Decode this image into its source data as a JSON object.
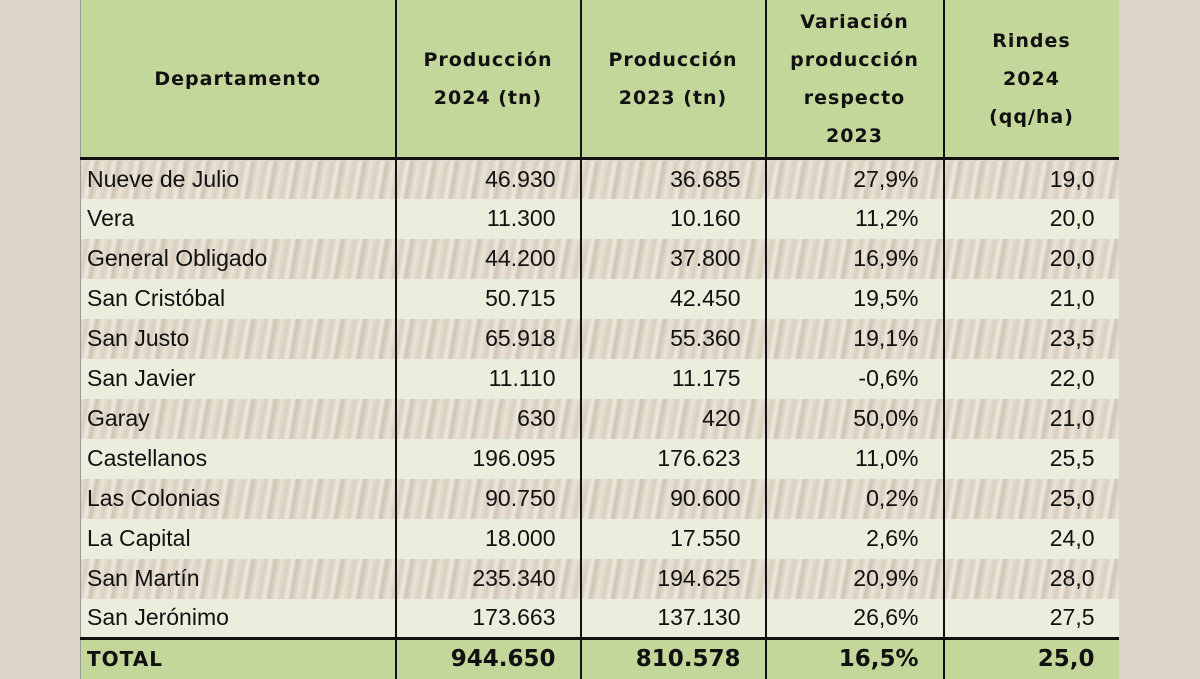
{
  "headers": [
    [
      "Departamento"
    ],
    [
      "Producción",
      "2024 (tn)"
    ],
    [
      "Producción",
      "2023 (tn)"
    ],
    [
      "Variación",
      "producción",
      "respecto",
      "2023"
    ],
    [
      "Rindes",
      "2024",
      "(qq/ha)"
    ]
  ],
  "rows": [
    [
      "Nueve de Julio",
      "46.930",
      "36.685",
      "27,9%",
      "19,0"
    ],
    [
      "Vera",
      "11.300",
      "10.160",
      "11,2%",
      "20,0"
    ],
    [
      "General Obligado",
      "44.200",
      "37.800",
      "16,9%",
      "20,0"
    ],
    [
      "San Cristóbal",
      "50.715",
      "42.450",
      "19,5%",
      "21,0"
    ],
    [
      "San Justo",
      "65.918",
      "55.360",
      "19,1%",
      "23,5"
    ],
    [
      "San Javier",
      "11.110",
      "11.175",
      "-0,6%",
      "22,0"
    ],
    [
      "Garay",
      "630",
      "420",
      "50,0%",
      "21,0"
    ],
    [
      "Castellanos",
      "196.095",
      "176.623",
      "11,0%",
      "25,5"
    ],
    [
      "Las Colonias",
      "90.750",
      "90.600",
      "0,2%",
      "25,0"
    ],
    [
      "La Capital",
      "18.000",
      "17.550",
      "2,6%",
      "24,0"
    ],
    [
      "San Martín",
      "235.340",
      "194.625",
      "20,9%",
      "28,0"
    ],
    [
      "San Jerónimo",
      "173.663",
      "137.130",
      "26,6%",
      "27,5"
    ]
  ],
  "total": [
    "TOTAL",
    "944.650",
    "810.578",
    "16,5%",
    "25,0"
  ],
  "colors": {
    "header": "#c4d79b",
    "row_alt": "#e9efdc",
    "background": "#ddd5c9"
  }
}
